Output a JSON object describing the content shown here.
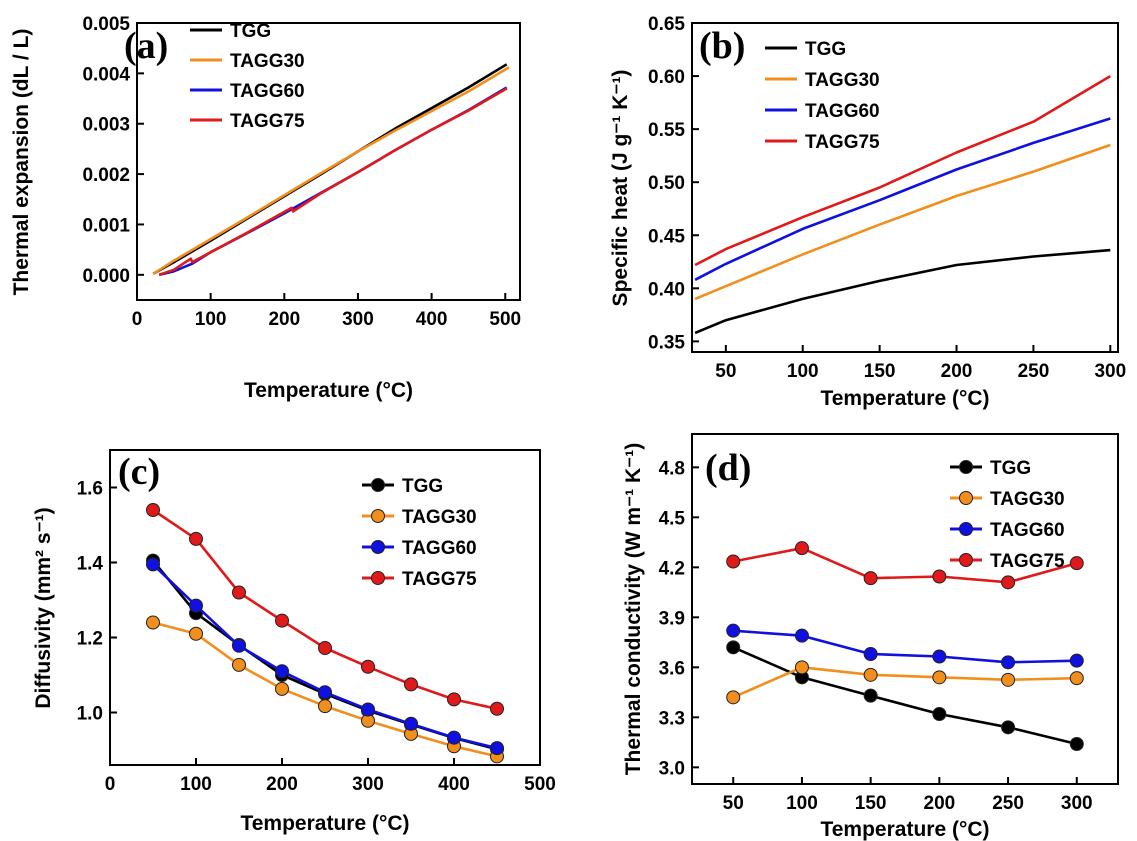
{
  "colors": {
    "TGG": "#000000",
    "TAGG30": "#f28e1c",
    "TAGG60": "#1010e0",
    "TAGG75": "#e01a1a"
  },
  "chart_data": [
    {
      "type": "line",
      "panel_label": "(a)",
      "xlabel": "Temperature (°C)",
      "ylabel": "Thermal expansion (dL / L)",
      "xlim": [
        0,
        520
      ],
      "ylim": [
        -0.0005,
        0.005
      ],
      "xticks": [
        "0",
        "100",
        "200",
        "300",
        "400",
        "500"
      ],
      "yticks": [
        "0.000",
        "0.001",
        "0.002",
        "0.003",
        "0.004",
        "0.005"
      ],
      "legend_position": "top-left",
      "series": [
        {
          "name": "TGG",
          "x": [
            22,
            50,
            100,
            150,
            200,
            250,
            300,
            350,
            400,
            450,
            502
          ],
          "y": [
            2e-05,
            0.00025,
            0.00068,
            0.00112,
            0.00156,
            0.002,
            0.00245,
            0.0029,
            0.00331,
            0.00372,
            0.00418
          ]
        },
        {
          "name": "TAGG30",
          "x": [
            22,
            50,
            100,
            150,
            200,
            250,
            300,
            350,
            400,
            450,
            505
          ],
          "y": [
            2e-05,
            0.00028,
            0.00071,
            0.00114,
            0.00158,
            0.00202,
            0.00245,
            0.00286,
            0.00325,
            0.00364,
            0.00412
          ]
        },
        {
          "name": "TAGG60",
          "x": [
            30,
            50,
            75,
            100,
            150,
            200,
            250,
            300,
            350,
            400,
            450,
            502
          ],
          "y": [
            0.0,
            7e-05,
            0.00022,
            0.00045,
            0.00083,
            0.00122,
            0.00163,
            0.00204,
            0.00247,
            0.00288,
            0.00327,
            0.00372
          ]
        },
        {
          "name": "TAGG75",
          "x": [
            30,
            50,
            73,
            75,
            100,
            150,
            200,
            210,
            212,
            250,
            300,
            350,
            400,
            450,
            502
          ],
          "y": [
            0.0,
            0.0001,
            0.00032,
            0.00025,
            0.00045,
            0.00084,
            0.00125,
            0.00133,
            0.00126,
            0.00162,
            0.00204,
            0.00247,
            0.00288,
            0.00326,
            0.0037
          ]
        }
      ]
    },
    {
      "type": "line",
      "panel_label": "(b)",
      "xlabel": "Temperature (°C)",
      "ylabel": "Specific heat (J g⁻¹ K⁻¹)",
      "xlim": [
        28,
        305
      ],
      "ylim": [
        0.34,
        0.65
      ],
      "xticks": [
        "50",
        "100",
        "150",
        "200",
        "250",
        "300"
      ],
      "yticks": [
        "0.35",
        "0.40",
        "0.45",
        "0.50",
        "0.55",
        "0.60",
        "0.65"
      ],
      "legend_position": "top-left",
      "series": [
        {
          "name": "TGG",
          "x": [
            30,
            50,
            100,
            150,
            200,
            250,
            275,
            300
          ],
          "y": [
            0.358,
            0.37,
            0.39,
            0.407,
            0.422,
            0.43,
            0.433,
            0.436
          ]
        },
        {
          "name": "TAGG30",
          "x": [
            30,
            50,
            100,
            150,
            200,
            250,
            300
          ],
          "y": [
            0.39,
            0.402,
            0.432,
            0.46,
            0.487,
            0.51,
            0.535
          ]
        },
        {
          "name": "TAGG60",
          "x": [
            30,
            50,
            100,
            150,
            200,
            250,
            300
          ],
          "y": [
            0.408,
            0.423,
            0.456,
            0.483,
            0.512,
            0.537,
            0.56
          ]
        },
        {
          "name": "TAGG75",
          "x": [
            30,
            50,
            100,
            150,
            200,
            250,
            300
          ],
          "y": [
            0.422,
            0.437,
            0.467,
            0.495,
            0.528,
            0.557,
            0.6
          ]
        }
      ]
    },
    {
      "type": "line",
      "panel_label": "(c)",
      "xlabel": "Temperature (°C)",
      "ylabel": "Diffusivity (mm² s⁻¹)",
      "xlim": [
        0,
        500
      ],
      "ylim": [
        0.86,
        1.7
      ],
      "xticks": [
        "0",
        "100",
        "200",
        "300",
        "400",
        "500"
      ],
      "yticks": [
        "1.0",
        "1.2",
        "1.4",
        "1.6"
      ],
      "legend_position": "top-right",
      "series": [
        {
          "name": "TGG",
          "x": [
            50,
            100,
            150,
            200,
            250,
            300,
            350,
            400,
            450
          ],
          "y": [
            1.405,
            1.265,
            1.18,
            1.1,
            1.05,
            1.005,
            0.968,
            0.932,
            0.902
          ]
        },
        {
          "name": "TAGG30",
          "x": [
            50,
            100,
            150,
            200,
            250,
            300,
            350,
            400,
            450
          ],
          "y": [
            1.24,
            1.21,
            1.127,
            1.063,
            1.017,
            0.978,
            0.943,
            0.91,
            0.883
          ]
        },
        {
          "name": "TAGG60",
          "x": [
            50,
            100,
            150,
            200,
            250,
            300,
            350,
            400,
            450
          ],
          "y": [
            1.395,
            1.285,
            1.178,
            1.11,
            1.054,
            1.008,
            0.97,
            0.933,
            0.905
          ]
        },
        {
          "name": "TAGG75",
          "x": [
            50,
            100,
            150,
            200,
            250,
            300,
            350,
            400,
            450
          ],
          "y": [
            1.54,
            1.463,
            1.32,
            1.245,
            1.172,
            1.122,
            1.075,
            1.035,
            1.01
          ]
        }
      ]
    },
    {
      "type": "line",
      "panel_label": "(d)",
      "xlabel": "Temperature (°C)",
      "ylabel": "Thermal conductivity (W m⁻¹ K⁻¹)",
      "xlim": [
        20,
        330
      ],
      "ylim": [
        2.9,
        5.0
      ],
      "xticks": [
        "50",
        "100",
        "150",
        "200",
        "250",
        "300"
      ],
      "yticks": [
        "3.0",
        "3.3",
        "3.6",
        "3.9",
        "4.2",
        "4.5",
        "4.8"
      ],
      "legend_position": "top-right",
      "series": [
        {
          "name": "TGG",
          "x": [
            50,
            100,
            150,
            200,
            250,
            300
          ],
          "y": [
            3.72,
            3.54,
            3.43,
            3.32,
            3.24,
            3.14
          ]
        },
        {
          "name": "TAGG30",
          "x": [
            50,
            100,
            150,
            200,
            250,
            300
          ],
          "y": [
            3.42,
            3.6,
            3.555,
            3.54,
            3.525,
            3.535
          ]
        },
        {
          "name": "TAGG60",
          "x": [
            50,
            100,
            150,
            200,
            250,
            300
          ],
          "y": [
            3.82,
            3.79,
            3.68,
            3.665,
            3.63,
            3.64
          ]
        },
        {
          "name": "TAGG75",
          "x": [
            50,
            100,
            150,
            200,
            250,
            300
          ],
          "y": [
            4.235,
            4.315,
            4.135,
            4.145,
            4.11,
            4.225
          ]
        }
      ]
    }
  ]
}
